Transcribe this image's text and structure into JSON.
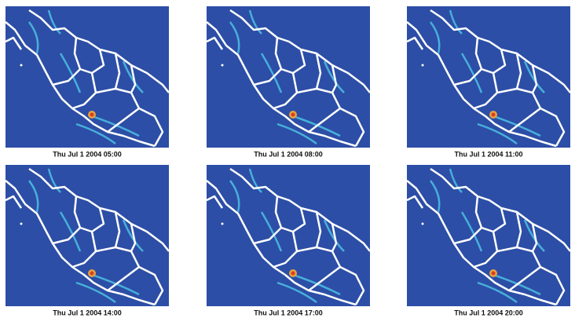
{
  "panels": [
    {
      "caption": "Thu Jul 1 2004 05:00"
    },
    {
      "caption": "Thu Jul 1 2004 08:00"
    },
    {
      "caption": "Thu Jul 1 2004 11:00"
    },
    {
      "caption": "Thu Jul 1 2004 14:00"
    },
    {
      "caption": "Thu Jul 1 2004 17:00"
    },
    {
      "caption": "Thu Jul 1 2004 20:00"
    }
  ]
}
